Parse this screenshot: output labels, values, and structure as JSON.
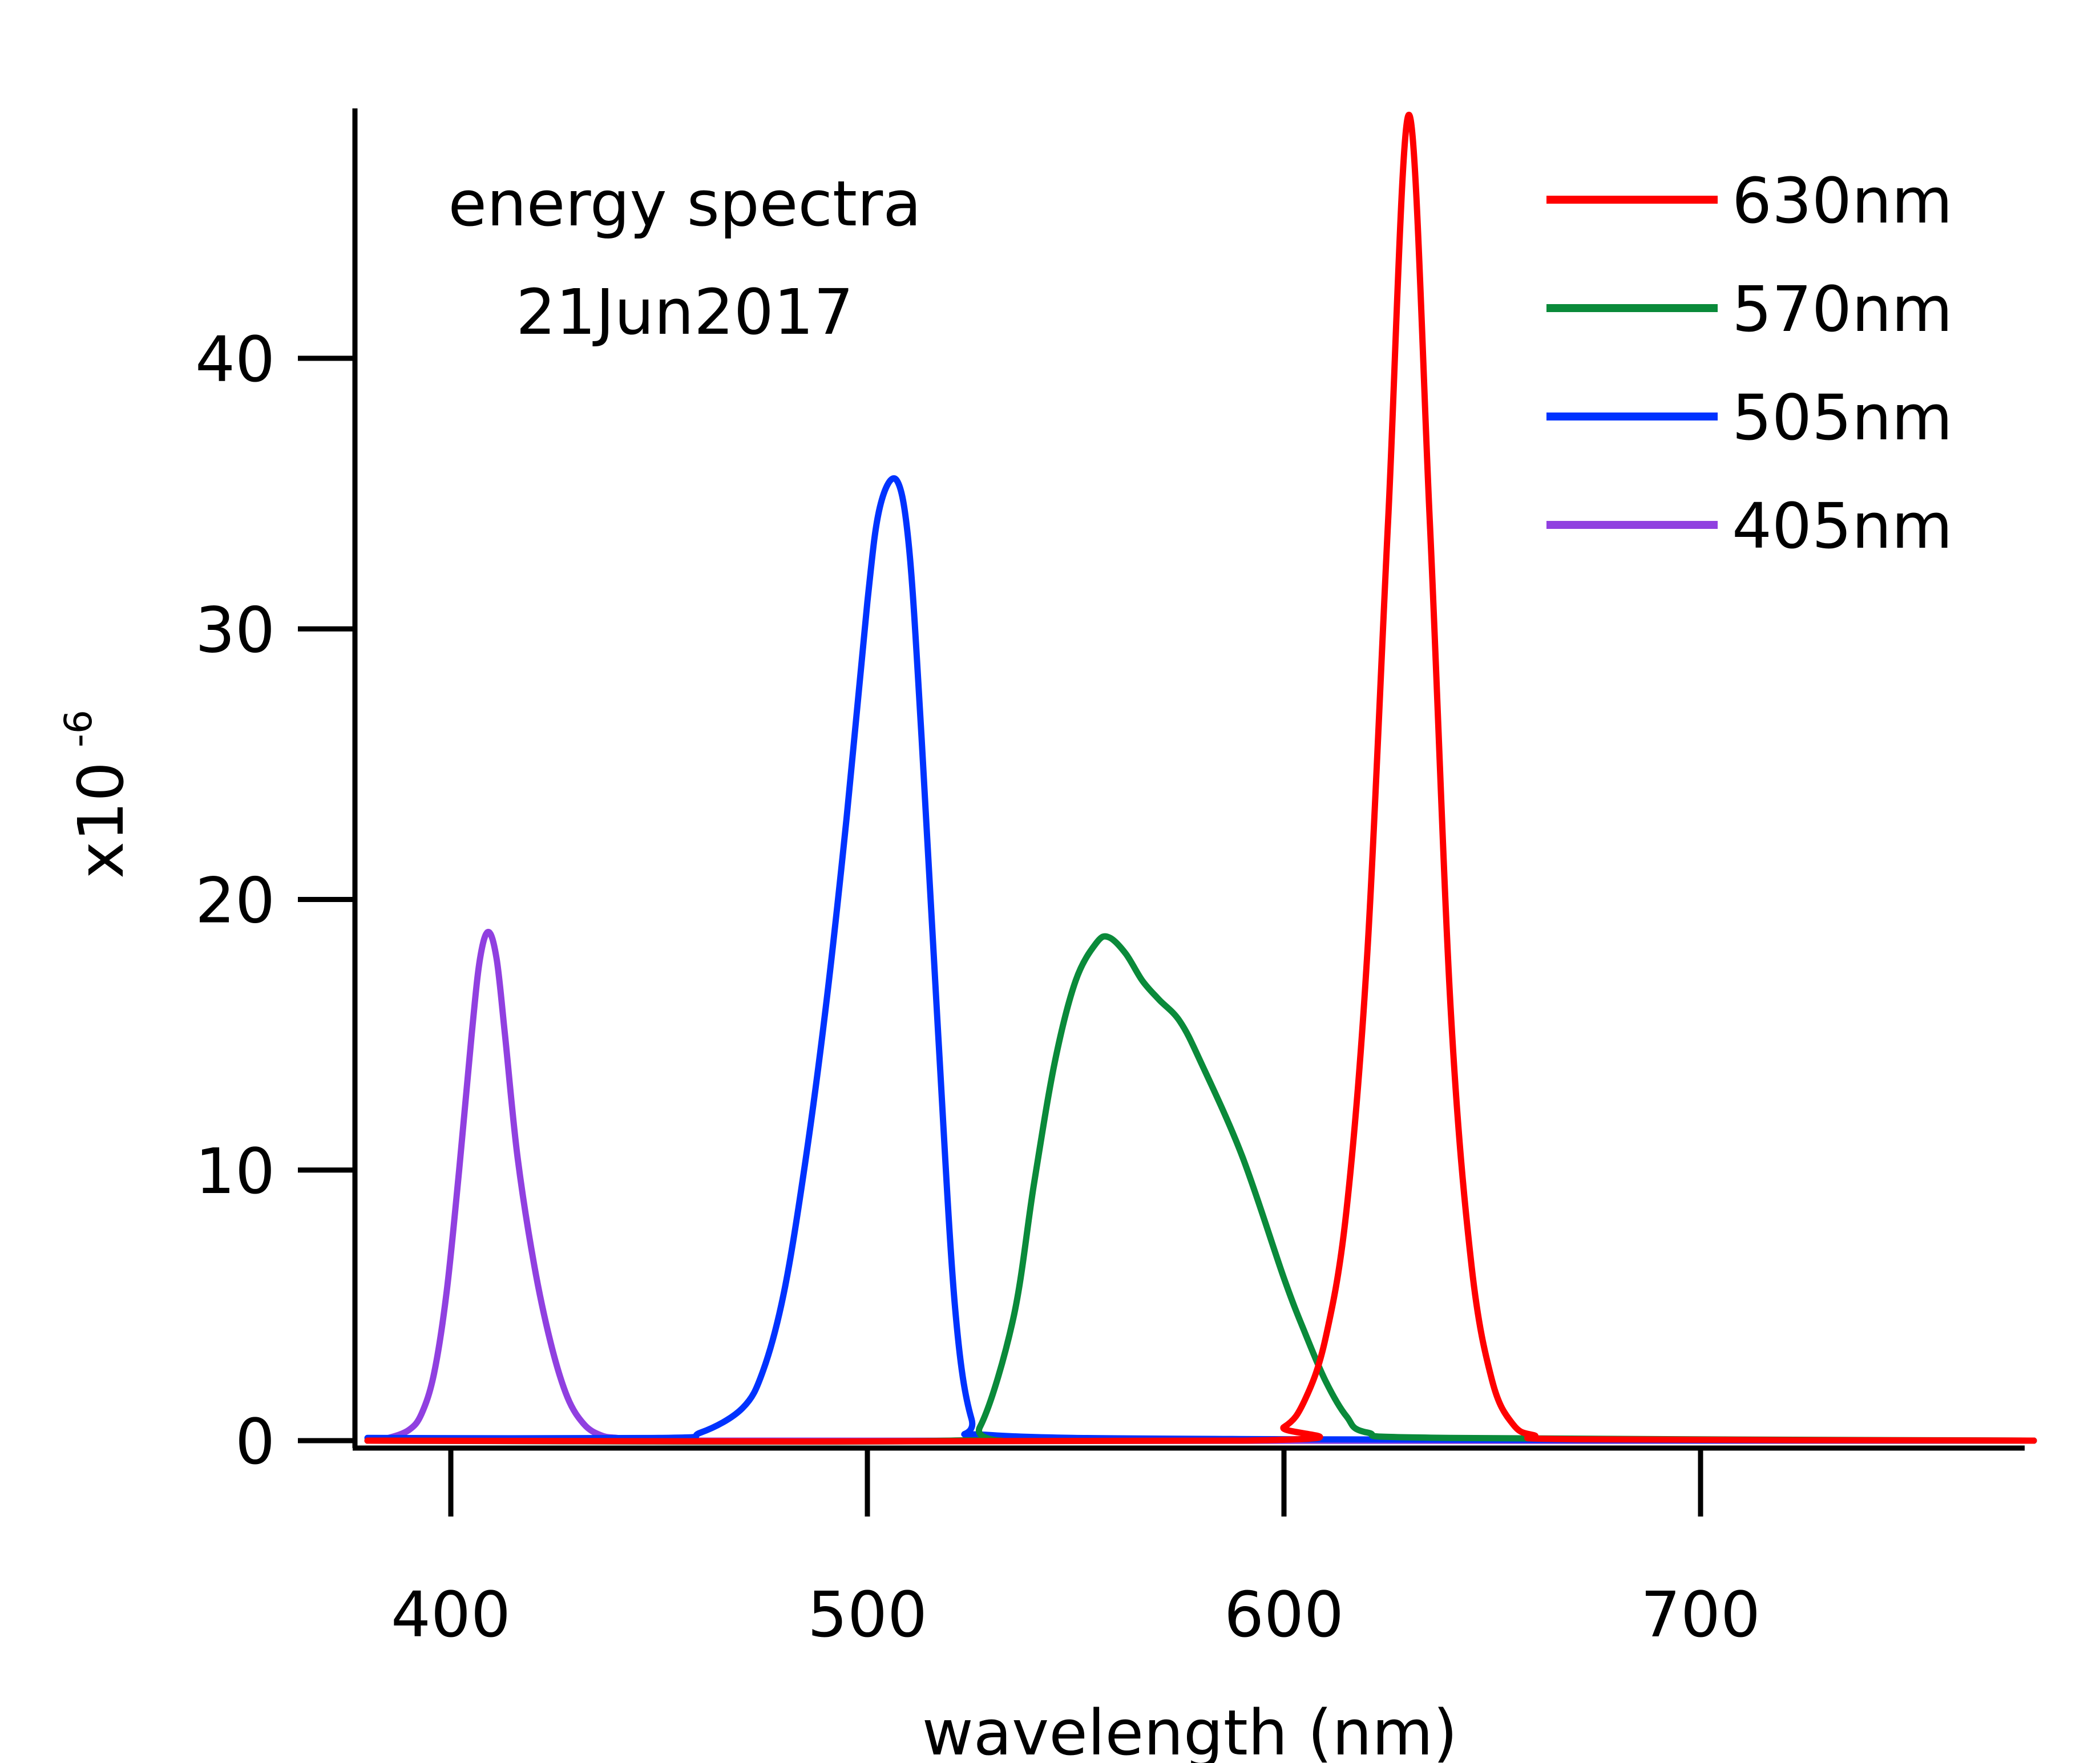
{
  "chart_data": {
    "type": "line",
    "annotation": [
      "energy spectra",
      "21Jun2017"
    ],
    "xlabel": "wavelength (nm)",
    "ylabel_prefix": "x10",
    "ylabel_exponent": "-6",
    "xlim": [
      378,
      780
    ],
    "ylim": [
      -0.5,
      49
    ],
    "x_ticks": [
      400,
      500,
      600,
      700
    ],
    "y_ticks": [
      0,
      10,
      20,
      30,
      40
    ],
    "x_tick_labels": [
      "400",
      "500",
      "600",
      "700"
    ],
    "y_tick_labels": [
      "0",
      "10",
      "20",
      "30",
      "40"
    ],
    "grid": false,
    "legend_position": "top-right",
    "series": [
      {
        "name": "630nm",
        "color": "#ff0000",
        "x": [
          380,
          590,
          600,
          605,
          610,
          615,
          620,
          625,
          630,
          635,
          640,
          645,
          650,
          655,
          660,
          670,
          780
        ],
        "y": [
          0,
          0,
          0.5,
          1.5,
          3.8,
          8.5,
          18.0,
          34.0,
          49.0,
          34.0,
          16.0,
          6.5,
          2.2,
          0.6,
          0.2,
          0.05,
          0
        ]
      },
      {
        "name": "570nm",
        "color": "#0a8a3a",
        "x": [
          380,
          520,
          527,
          535,
          540,
          545,
          550,
          555,
          558,
          562,
          566,
          570,
          575,
          580,
          590,
          600,
          605,
          610,
          615,
          620,
          640,
          780
        ],
        "y": [
          0,
          0,
          0.5,
          4.5,
          9.5,
          14.0,
          17.0,
          18.4,
          18.6,
          18.0,
          17.0,
          16.3,
          15.5,
          14.0,
          10.5,
          6.0,
          4.0,
          2.2,
          0.9,
          0.3,
          0.1,
          0
        ]
      },
      {
        "name": "505nm",
        "color": "#0033ff",
        "x": [
          380,
          450,
          460,
          470,
          475,
          480,
          485,
          490,
          495,
          500,
          503,
          507,
          510,
          513,
          517,
          521,
          525,
          530,
          600,
          780
        ],
        "y": [
          0.1,
          0.1,
          0.3,
          1.2,
          2.6,
          5.5,
          10.2,
          16.0,
          23.0,
          31.0,
          34.5,
          35.5,
          33.0,
          26.0,
          15.0,
          5.0,
          0.8,
          0.2,
          0.05,
          0
        ]
      },
      {
        "name": "405nm",
        "color": "#9040e0",
        "x": [
          380,
          385,
          390,
          393,
          396,
          399,
          402,
          405,
          407,
          409,
          411,
          413,
          416,
          420,
          424,
          428,
          432,
          436,
          440,
          450,
          780
        ],
        "y": [
          0,
          0.1,
          0.4,
          1.0,
          2.5,
          5.5,
          10.0,
          15.0,
          17.8,
          18.8,
          17.8,
          15.0,
          10.5,
          6.5,
          3.6,
          1.6,
          0.6,
          0.2,
          0.1,
          0,
          0
        ]
      }
    ]
  }
}
